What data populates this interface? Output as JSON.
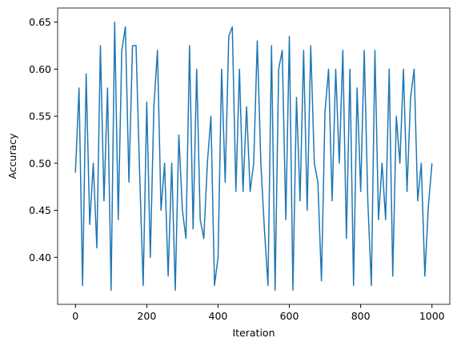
{
  "chart_data": {
    "type": "line",
    "xlabel": "Iteration",
    "ylabel": "Accuracy",
    "x": [
      0,
      10,
      20,
      30,
      40,
      50,
      60,
      70,
      80,
      90,
      100,
      110,
      120,
      130,
      140,
      150,
      160,
      170,
      180,
      190,
      200,
      210,
      220,
      230,
      240,
      250,
      260,
      270,
      280,
      290,
      300,
      310,
      320,
      330,
      340,
      350,
      360,
      370,
      380,
      390,
      400,
      410,
      420,
      430,
      440,
      450,
      460,
      470,
      480,
      490,
      500,
      510,
      520,
      530,
      540,
      550,
      560,
      570,
      580,
      590,
      600,
      610,
      620,
      630,
      640,
      650,
      660,
      670,
      680,
      690,
      700,
      710,
      720,
      730,
      740,
      750,
      760,
      770,
      780,
      790,
      800,
      810,
      820,
      830,
      840,
      850,
      860,
      870,
      880,
      890,
      900,
      910,
      920,
      930,
      940,
      950,
      960,
      970,
      980,
      990,
      1000
    ],
    "series": [
      {
        "color": "#1f77b4",
        "values": [
          0.49,
          0.58,
          0.37,
          0.595,
          0.435,
          0.5,
          0.41,
          0.625,
          0.46,
          0.58,
          0.365,
          0.65,
          0.44,
          0.62,
          0.645,
          0.48,
          0.625,
          0.625,
          0.49,
          0.37,
          0.565,
          0.4,
          0.56,
          0.62,
          0.45,
          0.5,
          0.38,
          0.5,
          0.365,
          0.53,
          0.45,
          0.42,
          0.625,
          0.43,
          0.6,
          0.44,
          0.42,
          0.5,
          0.55,
          0.37,
          0.4,
          0.6,
          0.48,
          0.635,
          0.645,
          0.47,
          0.6,
          0.47,
          0.56,
          0.47,
          0.5,
          0.63,
          0.5,
          0.43,
          0.37,
          0.625,
          0.365,
          0.6,
          0.62,
          0.44,
          0.635,
          0.365,
          0.57,
          0.46,
          0.62,
          0.45,
          0.625,
          0.5,
          0.48,
          0.375,
          0.555,
          0.6,
          0.46,
          0.6,
          0.5,
          0.62,
          0.42,
          0.6,
          0.37,
          0.58,
          0.47,
          0.62,
          0.46,
          0.37,
          0.62,
          0.44,
          0.5,
          0.44,
          0.6,
          0.38,
          0.55,
          0.5,
          0.6,
          0.47,
          0.57,
          0.6,
          0.46,
          0.5,
          0.38,
          0.455,
          0.5
        ]
      }
    ],
    "xlim": [
      -50,
      1050
    ],
    "xticks": [
      0,
      200,
      400,
      600,
      800,
      1000
    ],
    "ylim": [
      0.35,
      0.665
    ],
    "yticks": [
      {
        "value": 0.4,
        "label": "0.40"
      },
      0.45,
      {
        "value": 0.5,
        "label": "0.50"
      },
      0.55,
      {
        "value": 0.6,
        "label": "0.60"
      },
      0.65
    ],
    "grid": false
  }
}
